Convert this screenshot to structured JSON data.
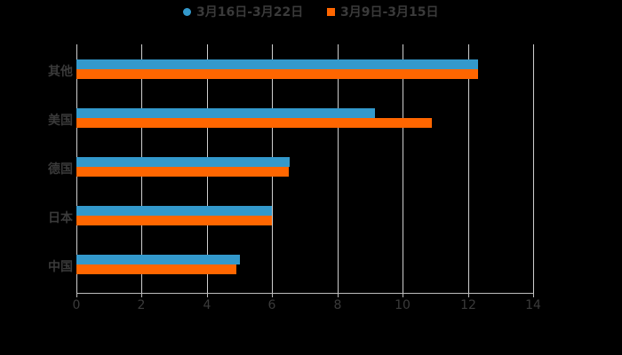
{
  "legend": [
    {
      "label": "3月16日-3月22日",
      "marker": "circle",
      "color": "#3399CC"
    },
    {
      "label": "3月9日-3月15日",
      "marker": "square",
      "color": "#FF6600"
    }
  ],
  "chart_data": {
    "type": "bar",
    "orientation": "horizontal",
    "title": "",
    "xlabel": "",
    "ylabel": "",
    "categories": [
      "其他",
      "美国",
      "德国",
      "日本",
      "中国"
    ],
    "series": [
      {
        "name": "3月16日-3月22日",
        "color": "#3399CC",
        "values": [
          12.3,
          9.15,
          6.55,
          6.0,
          5.0
        ]
      },
      {
        "name": "3月9日-3月15日",
        "color": "#FF6600",
        "values": [
          12.3,
          10.9,
          6.5,
          6.0,
          4.9
        ]
      }
    ],
    "xlim": [
      0,
      14
    ],
    "x_ticks": [
      "0",
      "2",
      "4",
      "6",
      "8",
      "10",
      "12",
      "14"
    ],
    "grid": true,
    "legend_position": "top"
  }
}
